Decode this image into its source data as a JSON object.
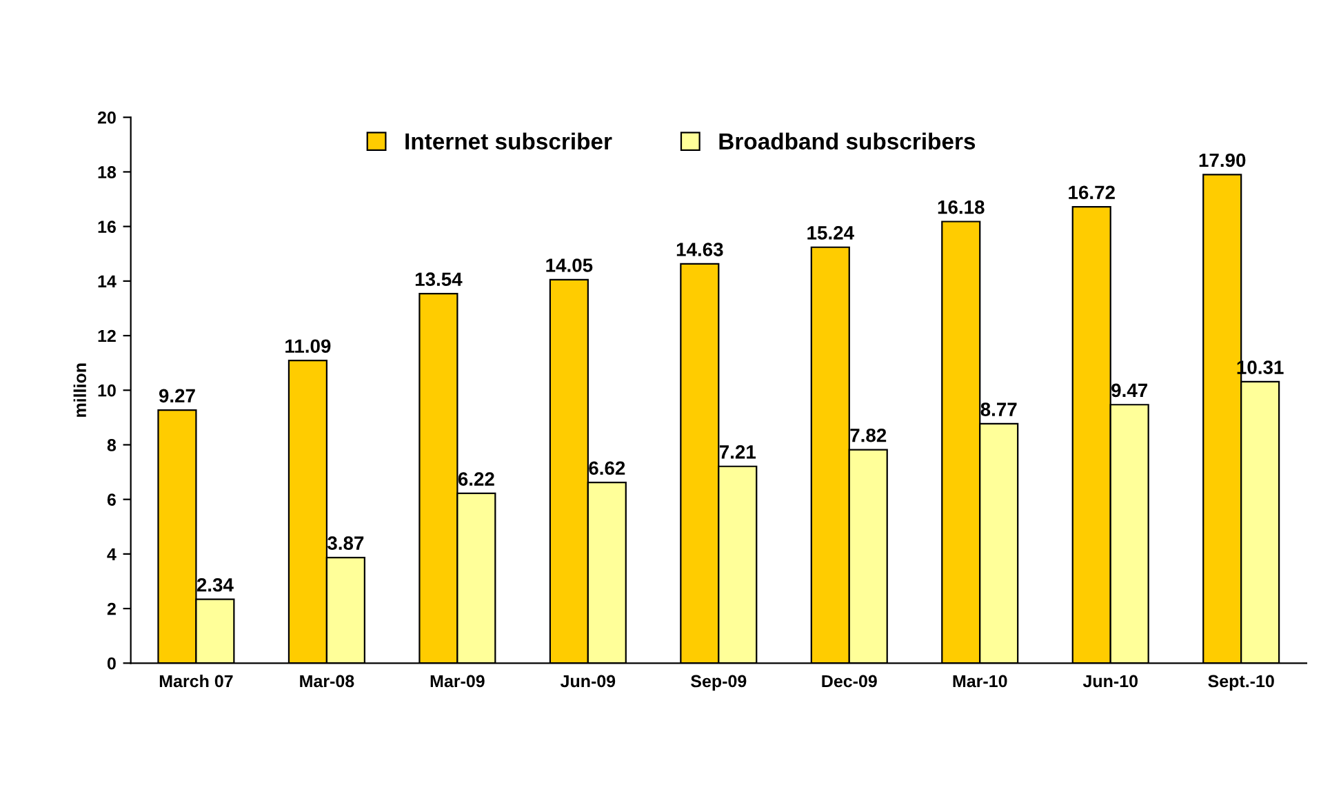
{
  "chart_data": {
    "type": "bar",
    "ylabel": "million",
    "categories": [
      "March 07",
      "Mar-08",
      "Mar-09",
      "Jun-09",
      "Sep-09",
      "Dec-09",
      "Mar-10",
      "Jun-10",
      "Sept.-10"
    ],
    "series": [
      {
        "name": "Internet subscriber",
        "color": "#ffcc00",
        "values": [
          9.27,
          11.09,
          13.54,
          14.05,
          14.63,
          15.24,
          16.18,
          16.72,
          17.9
        ],
        "value_labels": [
          "9.27",
          "11.09",
          "13.54",
          "14.05",
          "14.63",
          "15.24",
          "16.18",
          "16.72",
          "17.90"
        ]
      },
      {
        "name": "Broadband subscribers",
        "color": "#ffff99",
        "values": [
          2.34,
          3.87,
          6.22,
          6.62,
          7.21,
          7.82,
          8.77,
          9.47,
          10.31
        ],
        "value_labels": [
          "2.34",
          "3.87",
          "6.22",
          "6.62",
          "7.21",
          "7.82",
          "8.77",
          "9.47",
          "10.31"
        ]
      }
    ],
    "ylim": [
      0,
      20
    ],
    "yticks": [
      0,
      2,
      4,
      6,
      8,
      10,
      12,
      14,
      16,
      18,
      20
    ],
    "grid": false,
    "legend": "top"
  }
}
